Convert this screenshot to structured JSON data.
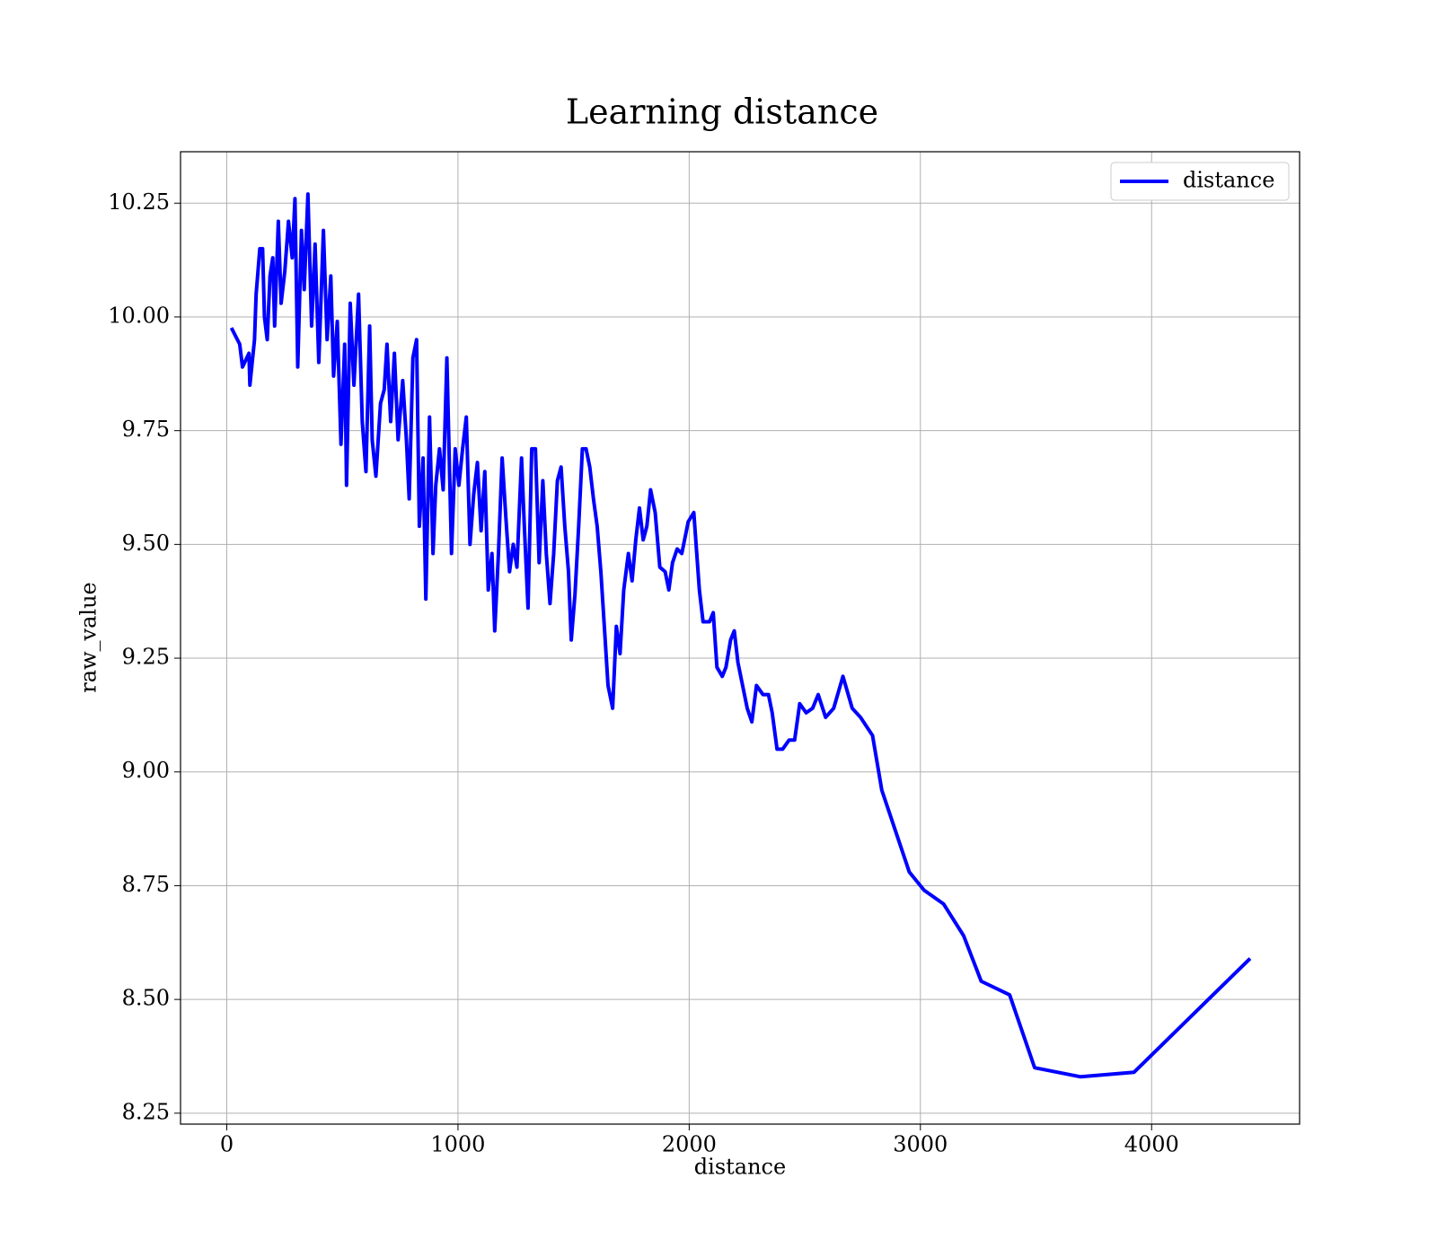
{
  "chart_data": {
    "type": "line",
    "title": "Learning distance",
    "xlabel": "distance",
    "ylabel": "raw_value",
    "x": [
      20,
      56,
      68,
      96,
      100,
      120,
      127,
      143,
      155,
      163,
      175,
      187,
      199,
      207,
      223,
      235,
      251,
      267,
      283,
      295,
      307,
      323,
      335,
      351,
      367,
      382,
      398,
      418,
      434,
      450,
      462,
      478,
      494,
      510,
      518,
      534,
      550,
      570,
      586,
      602,
      618,
      629,
      645,
      665,
      681,
      693,
      709,
      725,
      741,
      761,
      777,
      789,
      805,
      821,
      833,
      849,
      861,
      877,
      892,
      904,
      920,
      936,
      952,
      972,
      988,
      1004,
      1020,
      1036,
      1052,
      1068,
      1084,
      1100,
      1116,
      1131,
      1147,
      1159,
      1175,
      1191,
      1207,
      1223,
      1239,
      1255,
      1275,
      1287,
      1303,
      1319,
      1335,
      1351,
      1367,
      1382,
      1398,
      1414,
      1430,
      1446,
      1462,
      1478,
      1490,
      1506,
      1522,
      1538,
      1554,
      1570,
      1586,
      1602,
      1618,
      1633,
      1649,
      1669,
      1685,
      1701,
      1717,
      1737,
      1753,
      1769,
      1785,
      1801,
      1817,
      1833,
      1853,
      1873,
      1896,
      1912,
      1928,
      1948,
      1968,
      1996,
      2020,
      2044,
      2060,
      2088,
      2104,
      2120,
      2143,
      2159,
      2179,
      2195,
      2211,
      2251,
      2271,
      2291,
      2319,
      2343,
      2359,
      2380,
      2404,
      2432,
      2456,
      2478,
      2506,
      2534,
      2558,
      2590,
      2625,
      2665,
      2705,
      2741,
      2793,
      2833,
      2952,
      3016,
      3100,
      3187,
      3263,
      3386,
      3494,
      3693,
      3924,
      4426
    ],
    "series": [
      {
        "name": "distance",
        "color": "#0000ff",
        "values": [
          9.976,
          9.94,
          9.89,
          9.92,
          9.85,
          9.95,
          10.05,
          10.15,
          10.15,
          10.0,
          9.95,
          10.09,
          10.13,
          9.98,
          10.21,
          10.03,
          10.1,
          10.21,
          10.13,
          10.26,
          9.89,
          10.19,
          10.06,
          10.27,
          9.98,
          10.16,
          9.9,
          10.19,
          9.95,
          10.09,
          9.87,
          9.99,
          9.72,
          9.94,
          9.63,
          10.03,
          9.85,
          10.05,
          9.77,
          9.66,
          9.98,
          9.73,
          9.65,
          9.81,
          9.84,
          9.94,
          9.77,
          9.92,
          9.73,
          9.86,
          9.73,
          9.6,
          9.91,
          9.95,
          9.54,
          9.69,
          9.38,
          9.78,
          9.48,
          9.63,
          9.71,
          9.62,
          9.91,
          9.48,
          9.71,
          9.63,
          9.71,
          9.78,
          9.5,
          9.61,
          9.68,
          9.53,
          9.66,
          9.4,
          9.48,
          9.31,
          9.48,
          9.69,
          9.56,
          9.44,
          9.5,
          9.45,
          9.69,
          9.54,
          9.36,
          9.71,
          9.71,
          9.46,
          9.64,
          9.48,
          9.37,
          9.48,
          9.64,
          9.67,
          9.54,
          9.44,
          9.29,
          9.39,
          9.54,
          9.71,
          9.71,
          9.67,
          9.6,
          9.54,
          9.44,
          9.32,
          9.19,
          9.14,
          9.32,
          9.26,
          9.4,
          9.48,
          9.42,
          9.51,
          9.58,
          9.51,
          9.54,
          9.62,
          9.57,
          9.45,
          9.44,
          9.4,
          9.46,
          9.49,
          9.48,
          9.55,
          9.57,
          9.4,
          9.33,
          9.33,
          9.35,
          9.23,
          9.21,
          9.23,
          9.29,
          9.31,
          9.24,
          9.14,
          9.11,
          9.19,
          9.17,
          9.17,
          9.13,
          9.05,
          9.05,
          9.07,
          9.07,
          9.15,
          9.13,
          9.14,
          9.17,
          9.12,
          9.14,
          9.21,
          9.14,
          9.12,
          9.08,
          8.96,
          8.78,
          8.74,
          8.71,
          8.64,
          8.54,
          8.51,
          8.35,
          8.33,
          8.34,
          8.59
        ]
      }
    ],
    "xlim": [
      -200,
      4640
    ],
    "ylim": [
      8.226,
      10.363
    ],
    "xticks": [
      0,
      1000,
      2000,
      3000,
      4000
    ],
    "yticks": [
      8.25,
      {
        "value": 8.5,
        "label": "8.50"
      },
      8.75,
      {
        "value": 9.0,
        "label": "9.00"
      },
      9.25,
      {
        "value": 9.5,
        "label": "9.50"
      },
      9.75,
      {
        "value": 10.0,
        "label": "10.00"
      },
      10.25
    ],
    "grid": true,
    "legend": "upper right"
  }
}
